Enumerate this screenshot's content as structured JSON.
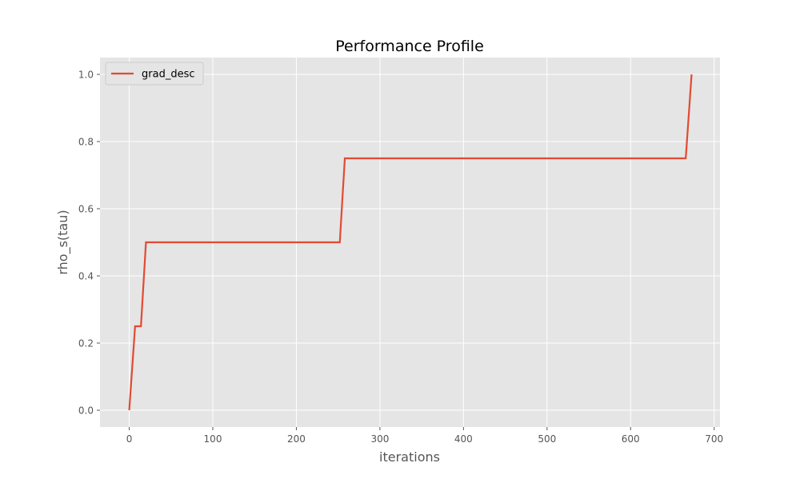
{
  "chart_data": {
    "type": "line",
    "title": "Performance Profile",
    "xlabel": "iterations",
    "ylabel": "rho_s(tau)",
    "xlim": [
      -35,
      707
    ],
    "ylim": [
      -0.05,
      1.05
    ],
    "xticks": [
      0,
      100,
      200,
      300,
      400,
      500,
      600,
      700
    ],
    "yticks": [
      0.0,
      0.2,
      0.4,
      0.6,
      0.8,
      1.0
    ],
    "xtick_labels": [
      "0",
      "100",
      "200",
      "300",
      "400",
      "500",
      "600",
      "700"
    ],
    "ytick_labels": [
      "0.0",
      "0.2",
      "0.4",
      "0.6",
      "0.8",
      "1.0"
    ],
    "grid": true,
    "legend_position": "top-left",
    "series": [
      {
        "name": "grad_desc",
        "color": "#e24a33",
        "x": [
          0,
          7,
          14,
          20,
          252,
          258,
          666,
          673
        ],
        "y": [
          0.0,
          0.25,
          0.25,
          0.5,
          0.5,
          0.75,
          0.75,
          1.0
        ]
      }
    ]
  },
  "style": {
    "plot_background": "#e5e5e5",
    "grid_color": "#ffffff",
    "tick_mark_color": "#555555"
  }
}
